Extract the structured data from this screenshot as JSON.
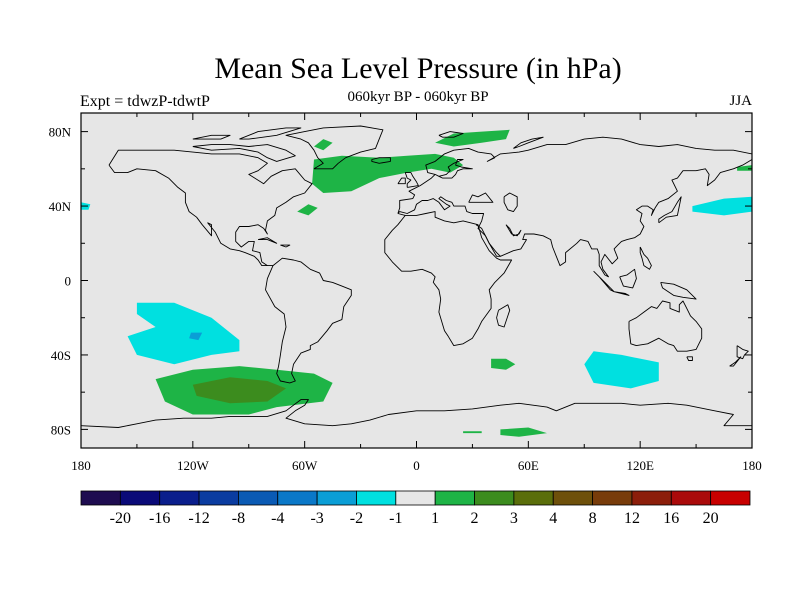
{
  "title": "Mean Sea Level Pressure (in hPa)",
  "subtitle": "060kyr BP - 060kyr BP",
  "experiment_label": "Expt = tdwzP-tdwtP",
  "season": "JJA",
  "colors": {
    "background": "#e6e6e6",
    "coastline": "#000000"
  },
  "chart_data": {
    "type": "heatmap",
    "map_projection": "cylindrical-equidistant",
    "xlim": [
      -180,
      180
    ],
    "ylim": [
      -90,
      90
    ],
    "x_ticks": [
      {
        "value": -180,
        "label": "180"
      },
      {
        "value": -120,
        "label": "120W"
      },
      {
        "value": -60,
        "label": "60W"
      },
      {
        "value": 0,
        "label": "0"
      },
      {
        "value": 60,
        "label": "60E"
      },
      {
        "value": 120,
        "label": "120E"
      },
      {
        "value": 180,
        "label": "180"
      }
    ],
    "y_ticks": [
      {
        "value": 80,
        "label": "80N"
      },
      {
        "value": 40,
        "label": "40N"
      },
      {
        "value": 0,
        "label": "0"
      },
      {
        "value": -40,
        "label": "40S"
      },
      {
        "value": -80,
        "label": "80S"
      }
    ],
    "colorbar": {
      "colors": [
        "#1e0c50",
        "#0a0a78",
        "#0a1e8c",
        "#0a3ca0",
        "#0a5ab4",
        "#0a78c8",
        "#0a9ed6",
        "#00e0e0",
        "#e6e6e6",
        "#1eb446",
        "#3c8c1e",
        "#5a6e0a",
        "#6e500a",
        "#783c0a",
        "#8c1e0a",
        "#aa0a0a",
        "#c80000"
      ],
      "labels": [
        "-20",
        "-16",
        "-12",
        "-8",
        "-4",
        "-3",
        "-2",
        "-1",
        "1",
        "2",
        "3",
        "4",
        "8",
        "12",
        "16",
        "20"
      ]
    },
    "regions": [
      {
        "name": "north-atlantic-positive",
        "color": "#1eb446",
        "points": [
          [
            -55,
            65
          ],
          [
            -40,
            67
          ],
          [
            -20,
            66
          ],
          [
            -5,
            67
          ],
          [
            10,
            68
          ],
          [
            20,
            66
          ],
          [
            25,
            62
          ],
          [
            18,
            58
          ],
          [
            8,
            60
          ],
          [
            -5,
            58
          ],
          [
            -20,
            55
          ],
          [
            -35,
            48
          ],
          [
            -50,
            47
          ],
          [
            -56,
            52
          ]
        ]
      },
      {
        "name": "nordic-sea-positive",
        "color": "#1eb446",
        "points": [
          [
            10,
            74
          ],
          [
            20,
            79
          ],
          [
            35,
            80
          ],
          [
            50,
            81
          ],
          [
            48,
            76
          ],
          [
            35,
            74
          ],
          [
            20,
            72
          ]
        ]
      },
      {
        "name": "greenland-positive",
        "color": "#1eb446",
        "points": [
          [
            -55,
            72
          ],
          [
            -50,
            76
          ],
          [
            -45,
            74
          ],
          [
            -50,
            70
          ]
        ]
      },
      {
        "name": "mid-atlantic-positive",
        "color": "#1eb446",
        "points": [
          [
            -64,
            37
          ],
          [
            -58,
            41
          ],
          [
            -53,
            39
          ],
          [
            -58,
            35
          ]
        ]
      },
      {
        "name": "pacific-east-negative",
        "color": "#00e0e0",
        "points": [
          [
            -150,
            -12
          ],
          [
            -130,
            -12
          ],
          [
            -110,
            -20
          ],
          [
            -95,
            -32
          ],
          [
            -95,
            -38
          ],
          [
            -110,
            -40
          ],
          [
            -130,
            -45
          ],
          [
            -150,
            -40
          ],
          [
            -155,
            -30
          ],
          [
            -140,
            -25
          ],
          [
            -150,
            -18
          ]
        ]
      },
      {
        "name": "pacific-east-negative-core",
        "color": "#0a9ed6",
        "points": [
          [
            -121,
            -28
          ],
          [
            -115,
            -28
          ],
          [
            -117,
            -32
          ],
          [
            -122,
            -31
          ]
        ]
      },
      {
        "name": "west-pacific-negative",
        "color": "#00e0e0",
        "points": [
          [
            148,
            40
          ],
          [
            165,
            44
          ],
          [
            180,
            45
          ],
          [
            180,
            37
          ],
          [
            165,
            35
          ],
          [
            148,
            37
          ]
        ]
      },
      {
        "name": "dateline-west-negative",
        "color": "#00e0e0",
        "points": [
          [
            -180,
            42
          ],
          [
            -175,
            41
          ],
          [
            -176,
            38
          ],
          [
            -180,
            38
          ]
        ]
      },
      {
        "name": "indian-ocean-negative",
        "color": "#00e0e0",
        "points": [
          [
            95,
            -38
          ],
          [
            110,
            -40
          ],
          [
            130,
            -44
          ],
          [
            130,
            -54
          ],
          [
            115,
            -58
          ],
          [
            95,
            -55
          ],
          [
            90,
            -45
          ]
        ]
      },
      {
        "name": "far-pacific-positive",
        "color": "#1eb446",
        "points": [
          [
            172,
            61
          ],
          [
            180,
            62
          ],
          [
            180,
            59
          ],
          [
            172,
            59
          ]
        ]
      },
      {
        "name": "southern-pacific-positive",
        "color": "#1eb446",
        "points": [
          [
            -140,
            -53
          ],
          [
            -120,
            -48
          ],
          [
            -95,
            -46
          ],
          [
            -75,
            -48
          ],
          [
            -55,
            -50
          ],
          [
            -45,
            -55
          ],
          [
            -50,
            -65
          ],
          [
            -75,
            -68
          ],
          [
            -90,
            -72
          ],
          [
            -120,
            -72
          ],
          [
            -135,
            -65
          ]
        ]
      },
      {
        "name": "southern-pacific-positive-core",
        "color": "#3c8c1e",
        "points": [
          [
            -120,
            -56
          ],
          [
            -100,
            -52
          ],
          [
            -80,
            -54
          ],
          [
            -70,
            -58
          ],
          [
            -80,
            -65
          ],
          [
            -100,
            -66
          ],
          [
            -118,
            -62
          ]
        ]
      },
      {
        "name": "south-indian-positive-1",
        "color": "#1eb446",
        "points": [
          [
            40,
            -42
          ],
          [
            48,
            -42
          ],
          [
            53,
            -45
          ],
          [
            48,
            -48
          ],
          [
            40,
            -47
          ]
        ]
      },
      {
        "name": "south-indian-positive-2",
        "color": "#1eb446",
        "points": [
          [
            45,
            -80
          ],
          [
            60,
            -79
          ],
          [
            70,
            -82
          ],
          [
            55,
            -84
          ],
          [
            45,
            -83
          ]
        ]
      },
      {
        "name": "south-indian-positive-3",
        "color": "#1eb446",
        "points": [
          [
            25,
            -81
          ],
          [
            35,
            -81
          ],
          [
            35,
            -82
          ],
          [
            25,
            -82
          ]
        ]
      }
    ]
  }
}
